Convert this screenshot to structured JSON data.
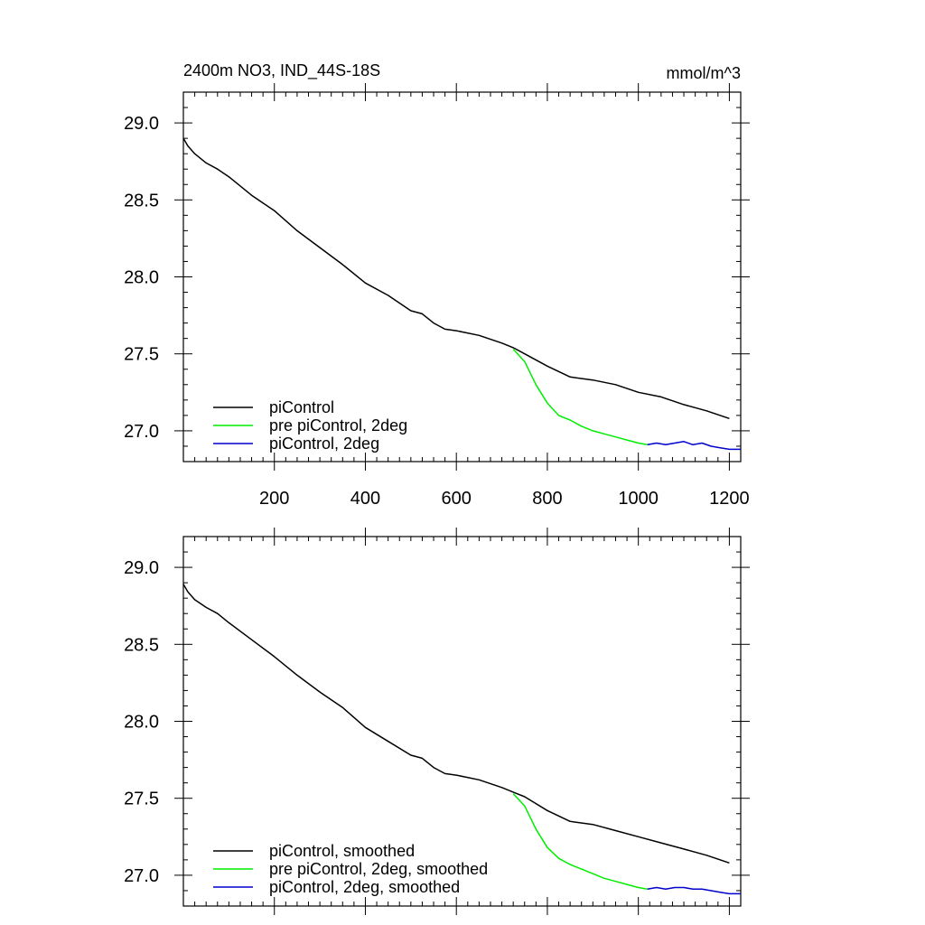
{
  "figure": {
    "title_left": "2400m NO3, IND_44S-18S",
    "title_right": "mmol/m^3"
  },
  "chart_data": [
    {
      "type": "line",
      "xlim": [
        0,
        1225
      ],
      "ylim": [
        26.8,
        29.2
      ],
      "xticks": [
        200,
        400,
        600,
        800,
        1000,
        1200
      ],
      "xtick_labels": [
        "200",
        "400",
        "600",
        "800",
        "1000",
        "1200"
      ],
      "yticks": [
        27.0,
        27.5,
        28.0,
        28.5,
        29.0
      ],
      "ytick_labels": [
        "27.0",
        "27.5",
        "28.0",
        "28.5",
        "29.0"
      ],
      "grid": false,
      "legend_position": "bottom-left",
      "series": [
        {
          "name": "piControl",
          "color": "#000000",
          "x": [
            0,
            10,
            25,
            50,
            75,
            100,
            150,
            200,
            250,
            300,
            350,
            400,
            450,
            500,
            525,
            550,
            575,
            600,
            650,
            700,
            725,
            750,
            800,
            850,
            900,
            950,
            1000,
            1050,
            1100,
            1150,
            1200
          ],
          "y": [
            28.9,
            28.85,
            28.8,
            28.74,
            28.7,
            28.65,
            28.53,
            28.43,
            28.3,
            28.19,
            28.08,
            27.96,
            27.88,
            27.78,
            27.76,
            27.7,
            27.66,
            27.65,
            27.62,
            27.57,
            27.54,
            27.5,
            27.42,
            27.35,
            27.33,
            27.3,
            27.25,
            27.22,
            27.17,
            27.13,
            27.08
          ]
        },
        {
          "name": "pre piControl, 2deg",
          "color": "#00ee00",
          "x": [
            725,
            750,
            775,
            800,
            825,
            850,
            875,
            900,
            925,
            950,
            975,
            1000,
            1020
          ],
          "y": [
            27.53,
            27.45,
            27.3,
            27.18,
            27.1,
            27.07,
            27.03,
            27.0,
            26.98,
            26.96,
            26.94,
            26.92,
            26.91
          ]
        },
        {
          "name": "piControl, 2deg",
          "color": "#0000cc",
          "x": [
            1020,
            1040,
            1060,
            1080,
            1100,
            1120,
            1140,
            1160,
            1180,
            1200,
            1225
          ],
          "y": [
            26.91,
            26.92,
            26.91,
            26.92,
            26.93,
            26.91,
            26.92,
            26.9,
            26.89,
            26.88,
            26.88
          ]
        }
      ]
    },
    {
      "type": "line",
      "xlim": [
        0,
        1225
      ],
      "ylim": [
        26.8,
        29.2
      ],
      "xticks": [
        200,
        400,
        600,
        800,
        1000,
        1200
      ],
      "xtick_labels": [],
      "yticks": [
        27.0,
        27.5,
        28.0,
        28.5,
        29.0
      ],
      "ytick_labels": [
        "27.0",
        "27.5",
        "28.0",
        "28.5",
        "29.0"
      ],
      "grid": false,
      "legend_position": "bottom-left",
      "series": [
        {
          "name": "piControl, smoothed",
          "color": "#000000",
          "x": [
            0,
            10,
            25,
            50,
            75,
            100,
            150,
            200,
            250,
            300,
            350,
            400,
            450,
            500,
            525,
            550,
            575,
            600,
            650,
            700,
            725,
            750,
            800,
            850,
            900,
            950,
            1000,
            1050,
            1100,
            1150,
            1200
          ],
          "y": [
            28.89,
            28.84,
            28.79,
            28.74,
            28.7,
            28.64,
            28.53,
            28.42,
            28.3,
            28.19,
            28.09,
            27.96,
            27.87,
            27.78,
            27.76,
            27.7,
            27.66,
            27.65,
            27.62,
            27.57,
            27.54,
            27.51,
            27.42,
            27.35,
            27.33,
            27.29,
            27.25,
            27.21,
            27.17,
            27.13,
            27.08
          ]
        },
        {
          "name": "pre piControl, 2deg, smoothed",
          "color": "#00ee00",
          "x": [
            725,
            750,
            775,
            800,
            825,
            850,
            875,
            900,
            925,
            950,
            975,
            1000,
            1020
          ],
          "y": [
            27.53,
            27.45,
            27.3,
            27.18,
            27.11,
            27.07,
            27.04,
            27.01,
            26.98,
            26.96,
            26.94,
            26.92,
            26.91
          ]
        },
        {
          "name": "piControl, 2deg, smoothed",
          "color": "#0000cc",
          "x": [
            1020,
            1040,
            1060,
            1080,
            1100,
            1120,
            1140,
            1160,
            1180,
            1200,
            1225
          ],
          "y": [
            26.91,
            26.92,
            26.91,
            26.92,
            26.92,
            26.91,
            26.91,
            26.9,
            26.89,
            26.88,
            26.88
          ]
        }
      ]
    }
  ]
}
